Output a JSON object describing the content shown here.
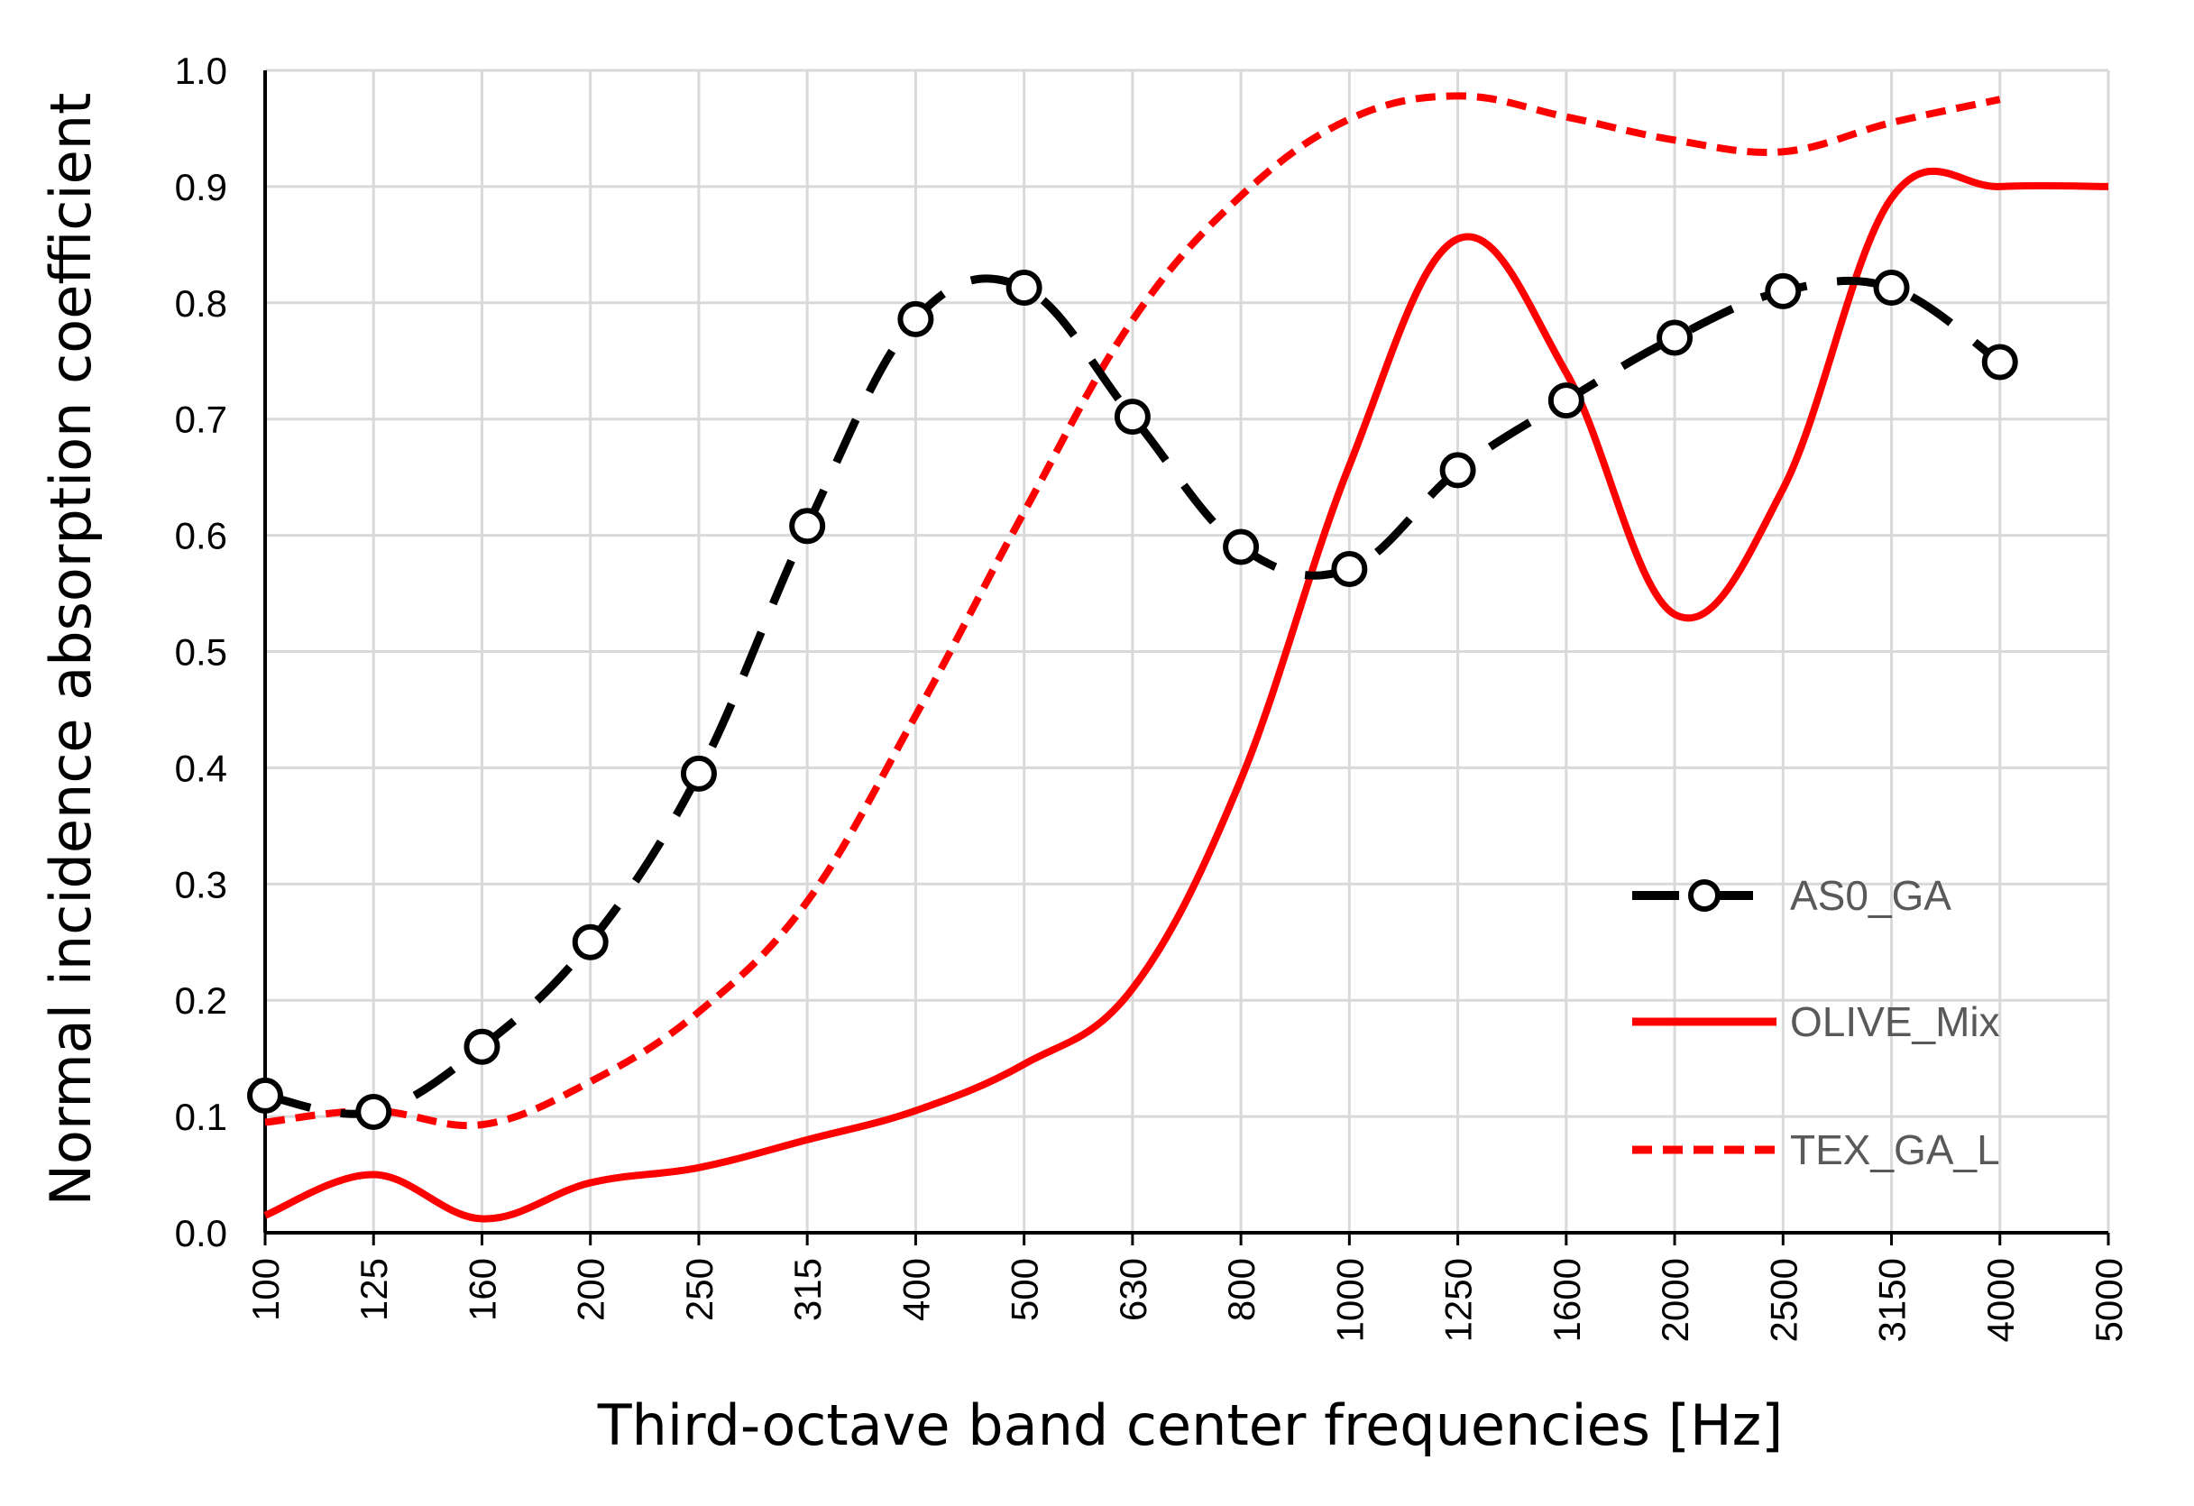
{
  "chart_data": {
    "type": "line",
    "title": "",
    "xlabel": "Third-octave band center frequencies [Hz]",
    "ylabel": "Normal incidence absorption coefficient",
    "categories": [
      "100",
      "125",
      "160",
      "200",
      "250",
      "315",
      "400",
      "500",
      "630",
      "800",
      "1000",
      "1250",
      "1600",
      "2000",
      "2500",
      "3150",
      "4000",
      "5000"
    ],
    "ylim": [
      0,
      1
    ],
    "ytick_labels": [
      "0.0",
      "0.1",
      "0.2",
      "0.3",
      "0.4",
      "0.5",
      "0.6",
      "0.7",
      "0.8",
      "0.9",
      "1.0"
    ],
    "grid": true,
    "legend_position": "right",
    "series": [
      {
        "name": "AS0_GA",
        "color": "#000000",
        "style": "dashed-markers",
        "values": [
          0.118,
          0.104,
          0.16,
          0.25,
          0.395,
          0.608,
          0.786,
          0.813,
          0.702,
          0.59,
          0.571,
          0.656,
          0.716,
          0.77,
          0.81,
          0.813,
          0.749,
          null
        ]
      },
      {
        "name": "OLIVE_Mix",
        "color": "#ff0000",
        "style": "solid",
        "values": [
          0.015,
          0.05,
          0.012,
          0.043,
          0.056,
          0.08,
          0.105,
          0.145,
          0.21,
          0.39,
          0.66,
          0.855,
          0.74,
          0.532,
          0.64,
          0.89,
          0.9,
          0.9
        ]
      },
      {
        "name": "TEX_GA_L",
        "color": "#ff0000",
        "style": "dotted",
        "values": [
          0.095,
          0.105,
          0.093,
          0.13,
          0.19,
          0.285,
          0.445,
          0.62,
          0.785,
          0.892,
          0.958,
          0.978,
          0.96,
          0.94,
          0.93,
          0.955,
          0.975,
          null
        ]
      }
    ]
  }
}
